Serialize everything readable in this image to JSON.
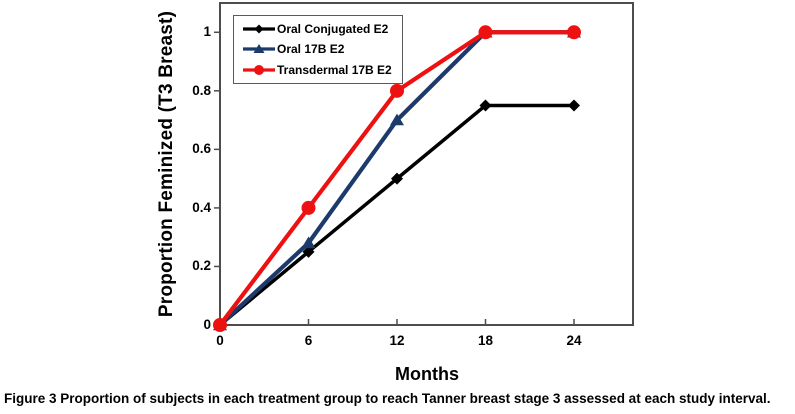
{
  "figure": {
    "caption_label": "Figure 3",
    "caption_text": "Proportion of subjects in each treatment group to reach Tanner breast stage 3 assessed at each study interval."
  },
  "chart_data": {
    "type": "line",
    "title": "",
    "xlabel": "Months",
    "ylabel": "Proportion Feminized (T3 Breast)",
    "x": [
      0,
      6,
      12,
      18,
      24
    ],
    "x_tick_values": [
      0,
      6,
      12,
      18,
      24
    ],
    "x_tick_labels": [
      "0",
      "6",
      "12",
      "18",
      "24"
    ],
    "y_tick_values": [
      0,
      0.2,
      0.4,
      0.6,
      0.8,
      1
    ],
    "y_tick_labels": [
      "0",
      "0.2",
      "0.4",
      "0.6",
      "0.8",
      "1"
    ],
    "xlim": [
      0,
      28
    ],
    "ylim": [
      0,
      1.1
    ],
    "grid": false,
    "legend_position": "top-left-inside",
    "axis_color": "#4d4d4d",
    "series": [
      {
        "name": "Oral Conjugated E2",
        "color": "#000000",
        "marker": "diamond",
        "values": [
          0,
          0.25,
          0.5,
          0.75,
          0.75
        ]
      },
      {
        "name": "Oral 17B E2",
        "color": "#1c3a6b",
        "marker": "triangle",
        "values": [
          0,
          0.28,
          0.7,
          1,
          1
        ]
      },
      {
        "name": "Transdermal 17B E2",
        "color": "#ee1111",
        "marker": "circle",
        "values": [
          0,
          0.4,
          0.8,
          1,
          1
        ]
      }
    ]
  }
}
